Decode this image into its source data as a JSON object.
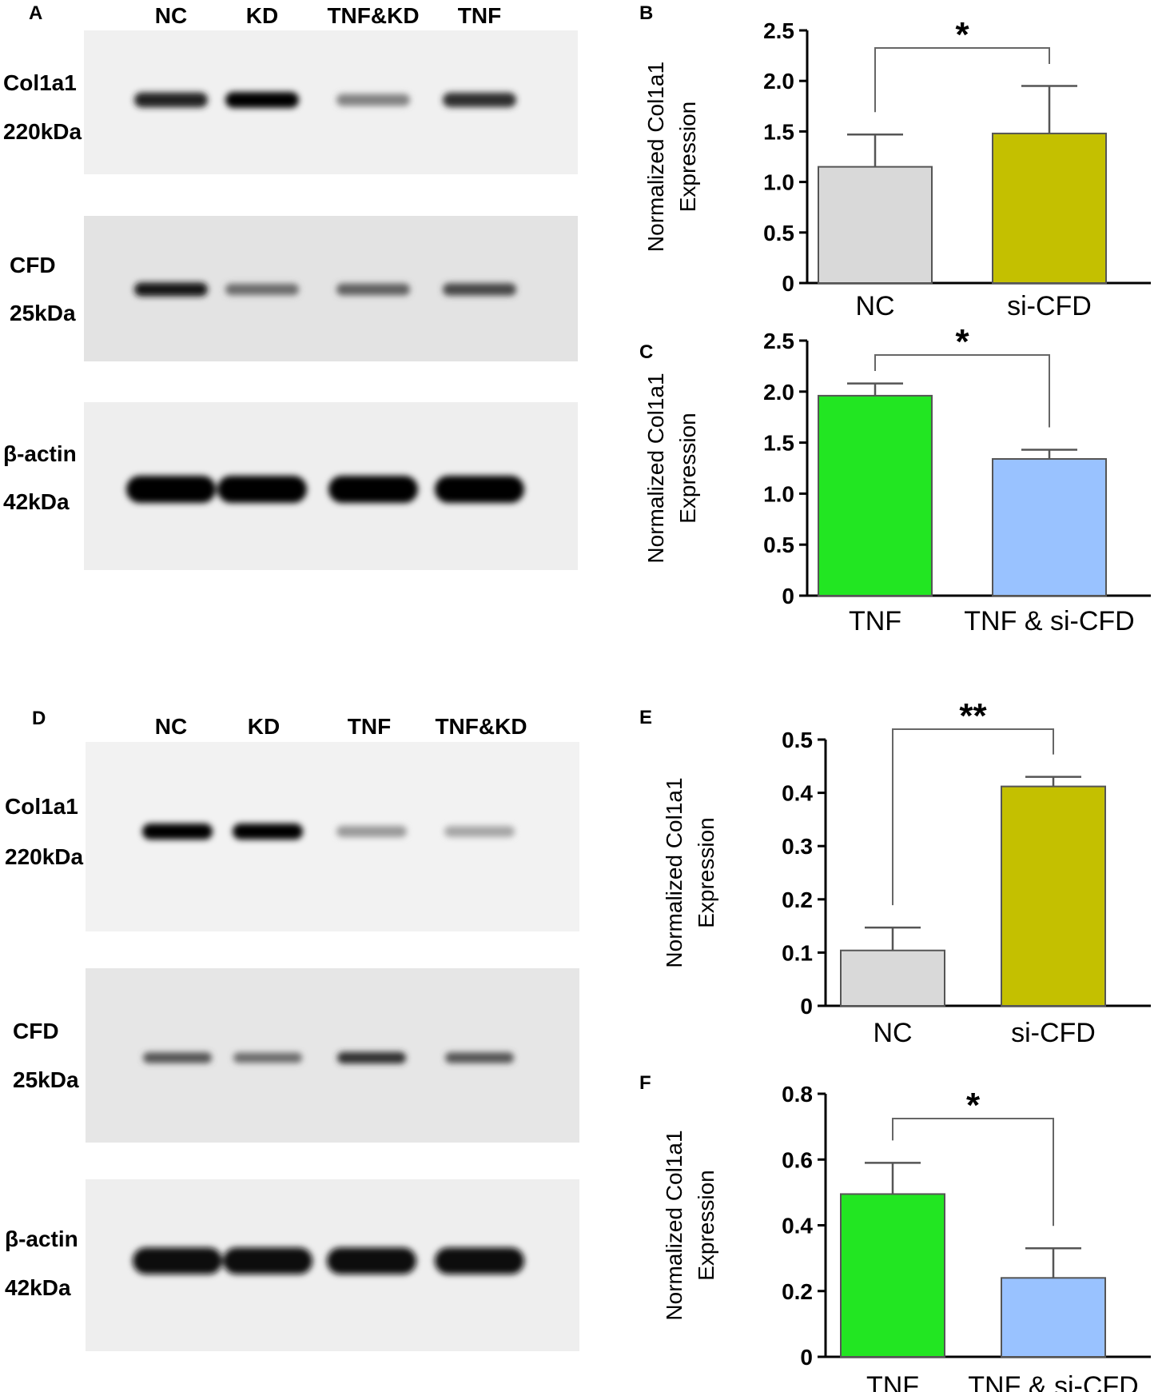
{
  "panels": {
    "A": {
      "letter": "A",
      "lanes": [
        "NC",
        "KD",
        "TNF&KD",
        "TNF"
      ],
      "blots": [
        {
          "protein": "Col1a1",
          "size": "220kDa",
          "intensity": [
            0.85,
            1.0,
            0.45,
            0.8
          ]
        },
        {
          "protein": "CFD",
          "size": "25kDa",
          "intensity": [
            0.9,
            0.55,
            0.6,
            0.7
          ]
        },
        {
          "protein": "β-actin",
          "size": "42kDa",
          "intensity": [
            1.0,
            1.0,
            1.0,
            1.0
          ]
        }
      ]
    },
    "D": {
      "letter": "D",
      "lanes": [
        "NC",
        "KD",
        "TNF",
        "TNF&KD"
      ],
      "blots": [
        {
          "protein": "Col1a1",
          "size": "220kDa",
          "intensity": [
            1.0,
            1.0,
            0.35,
            0.3
          ]
        },
        {
          "protein": "CFD",
          "size": "25kDa",
          "intensity": [
            0.65,
            0.55,
            0.8,
            0.65
          ]
        },
        {
          "protein": "β-actin",
          "size": "42kDa",
          "intensity": [
            0.95,
            0.95,
            0.95,
            0.95
          ]
        }
      ]
    }
  },
  "chart_data": [
    {
      "panel": "B",
      "type": "bar",
      "categories": [
        "NC",
        "si-CFD"
      ],
      "values": [
        1.15,
        1.48
      ],
      "errors": [
        0.32,
        0.47
      ],
      "colors": [
        "#d9d9d9",
        "#c4c000"
      ],
      "ylabel_lines": [
        "Normalized Col1a1",
        "Expression"
      ],
      "ylim": [
        0,
        2.5
      ],
      "yticks": [
        0,
        0.5,
        1.0,
        1.5,
        2.0,
        2.5
      ],
      "ytick_labels": [
        "0",
        "0.5",
        "1.0",
        "1.5",
        "2.0",
        "2.5"
      ],
      "significance": "*"
    },
    {
      "panel": "C",
      "type": "bar",
      "categories": [
        "TNF",
        "TNF & si-CFD"
      ],
      "values": [
        1.96,
        1.34
      ],
      "errors": [
        0.12,
        0.09
      ],
      "colors": [
        "#22e622",
        "#99c2ff"
      ],
      "ylabel_lines": [
        "Normalized Col1a1",
        "Expression"
      ],
      "ylim": [
        0,
        2.5
      ],
      "yticks": [
        0,
        0.5,
        1.0,
        1.5,
        2.0,
        2.5
      ],
      "ytick_labels": [
        "0",
        "0.5",
        "1.0",
        "1.5",
        "2.0",
        "2.5"
      ],
      "significance": "*"
    },
    {
      "panel": "E",
      "type": "bar",
      "categories": [
        "NC",
        "si-CFD"
      ],
      "values": [
        0.104,
        0.412
      ],
      "errors": [
        0.043,
        0.018
      ],
      "colors": [
        "#d9d9d9",
        "#c4c000"
      ],
      "ylabel_lines": [
        "Normalized Col1a1",
        "Expression"
      ],
      "ylim": [
        0,
        0.5
      ],
      "yticks": [
        0,
        0.1,
        0.2,
        0.3,
        0.4,
        0.5
      ],
      "ytick_labels": [
        "0",
        "0.1",
        "0.2",
        "0.3",
        "0.4",
        "0.5"
      ],
      "significance": "**"
    },
    {
      "panel": "F",
      "type": "bar",
      "categories": [
        "TNF",
        "TNF & si-CFD"
      ],
      "values": [
        0.495,
        0.24
      ],
      "errors": [
        0.095,
        0.09
      ],
      "colors": [
        "#22e622",
        "#99c2ff"
      ],
      "ylabel_lines": [
        "Normalized Col1a1",
        "Expression"
      ],
      "ylim": [
        0,
        0.8
      ],
      "yticks": [
        0,
        0.2,
        0.4,
        0.6,
        0.8
      ],
      "ytick_labels": [
        "0",
        "0.2",
        "0.4",
        "0.6",
        "0.8"
      ],
      "significance": "*"
    }
  ]
}
